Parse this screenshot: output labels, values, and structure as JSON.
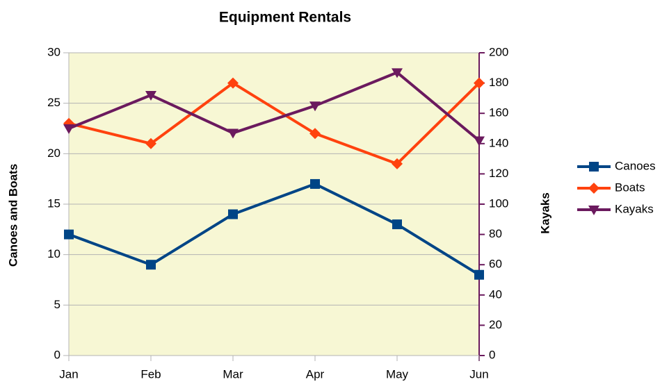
{
  "chart_data": {
    "type": "line",
    "title": "Equipment Rentals",
    "categories": [
      "Jan",
      "Feb",
      "Mar",
      "Apr",
      "May",
      "Jun"
    ],
    "series": [
      {
        "name": "Canoes",
        "color": "#004586",
        "marker": "square",
        "values": [
          12,
          9,
          14,
          17,
          13,
          8
        ]
      },
      {
        "name": "Boats",
        "color": "#ff420e",
        "marker": "diamond",
        "values": [
          23,
          21,
          27,
          22,
          19,
          27
        ]
      },
      {
        "name": "Kayaks",
        "color": "#6b1a5e",
        "marker": "triangle-down",
        "axis": "y2",
        "values": [
          150,
          172,
          147,
          165,
          187,
          142
        ]
      }
    ],
    "ylabel": "Canoes and Boats",
    "y2label": "Kayaks",
    "ylim": [
      0,
      30
    ],
    "yticks": [
      0,
      5,
      10,
      15,
      20,
      25,
      30
    ],
    "y2lim": [
      0,
      200
    ],
    "y2ticks": [
      0,
      20,
      40,
      60,
      80,
      100,
      120,
      140,
      160,
      180,
      200
    ],
    "y2color": "#6b1a5e",
    "plot_background": "#f7f7d4",
    "grid": true,
    "legend": "right"
  }
}
